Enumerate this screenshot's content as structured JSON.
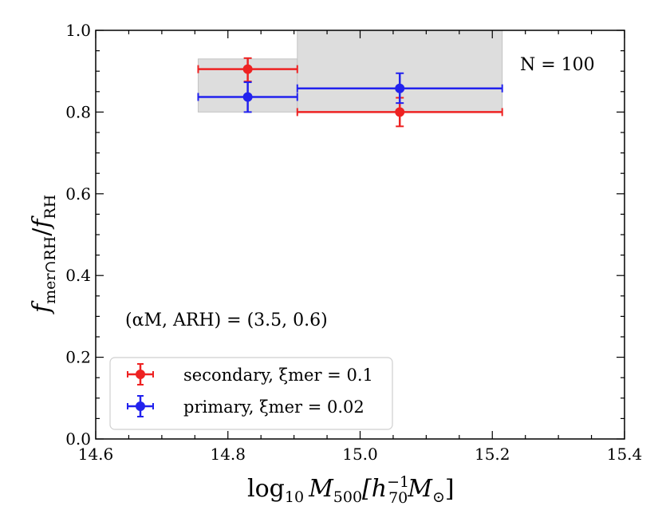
{
  "chart_data": {
    "type": "scatter",
    "title": "",
    "xlabel": "log10 M500[h70^-1 M⊙]",
    "ylabel": "f_mer∩RH / f_RH",
    "xlim": [
      14.6,
      15.4
    ],
    "ylim": [
      0.0,
      1.0
    ],
    "x_ticks": [
      "14.6",
      "14.8",
      "15.0",
      "15.2",
      "15.4"
    ],
    "y_ticks": [
      "0.0",
      "0.2",
      "0.4",
      "0.6",
      "0.8",
      "1.0"
    ],
    "grid": false,
    "legend_location": "lower-left",
    "annotations": [
      {
        "text": "N = 100",
        "location": "upper-right"
      },
      {
        "text": "(αM, ARH) = (3.5, 0.6)",
        "location": "lower-left-above-legend"
      }
    ],
    "shaded_bins": [
      {
        "x_range": [
          14.755,
          14.905
        ],
        "y_range": [
          0.8,
          0.93
        ]
      },
      {
        "x_range": [
          14.905,
          15.215
        ],
        "y_range": [
          0.8,
          1.0
        ]
      }
    ],
    "series": [
      {
        "name": "secondary, ξmer = 0.1",
        "color": "#ee2222",
        "points": [
          {
            "x": 14.83,
            "y": 0.905,
            "xerr": [
              14.755,
              14.905
            ],
            "yerr": [
              0.875,
              0.932
            ]
          },
          {
            "x": 15.06,
            "y": 0.8,
            "xerr": [
              14.905,
              15.215
            ],
            "yerr": [
              0.765,
              0.835
            ]
          }
        ]
      },
      {
        "name": "primary, ξmer = 0.02",
        "color": "#2222ee",
        "points": [
          {
            "x": 14.83,
            "y": 0.837,
            "xerr": [
              14.755,
              14.905
            ],
            "yerr": [
              0.8,
              0.873
            ]
          },
          {
            "x": 15.06,
            "y": 0.858,
            "xerr": [
              14.905,
              15.215
            ],
            "yerr": [
              0.822,
              0.895
            ]
          }
        ]
      }
    ]
  },
  "labels": {
    "xlabel_base": "log",
    "xlabel_sub10": "10",
    "xlabel_M": "M",
    "xlabel_sub500": "500",
    "xlabel_bracket_open": "[h",
    "xlabel_sub70": "70",
    "xlabel_sup": "−1",
    "xlabel_M2": "M",
    "xlabel_sun": "⊙",
    "xlabel_close": "]",
    "ylabel_f1": "f",
    "ylabel_sub1": "mer∩RH",
    "ylabel_slash": "/",
    "ylabel_f2": "f",
    "ylabel_sub2": "RH",
    "n_label": "N = 100",
    "params_label": "(αM, ARH) = (3.5, 0.6)",
    "legend_secondary": "secondary, ξmer = 0.1",
    "legend_primary": "primary, ξmer = 0.02"
  }
}
